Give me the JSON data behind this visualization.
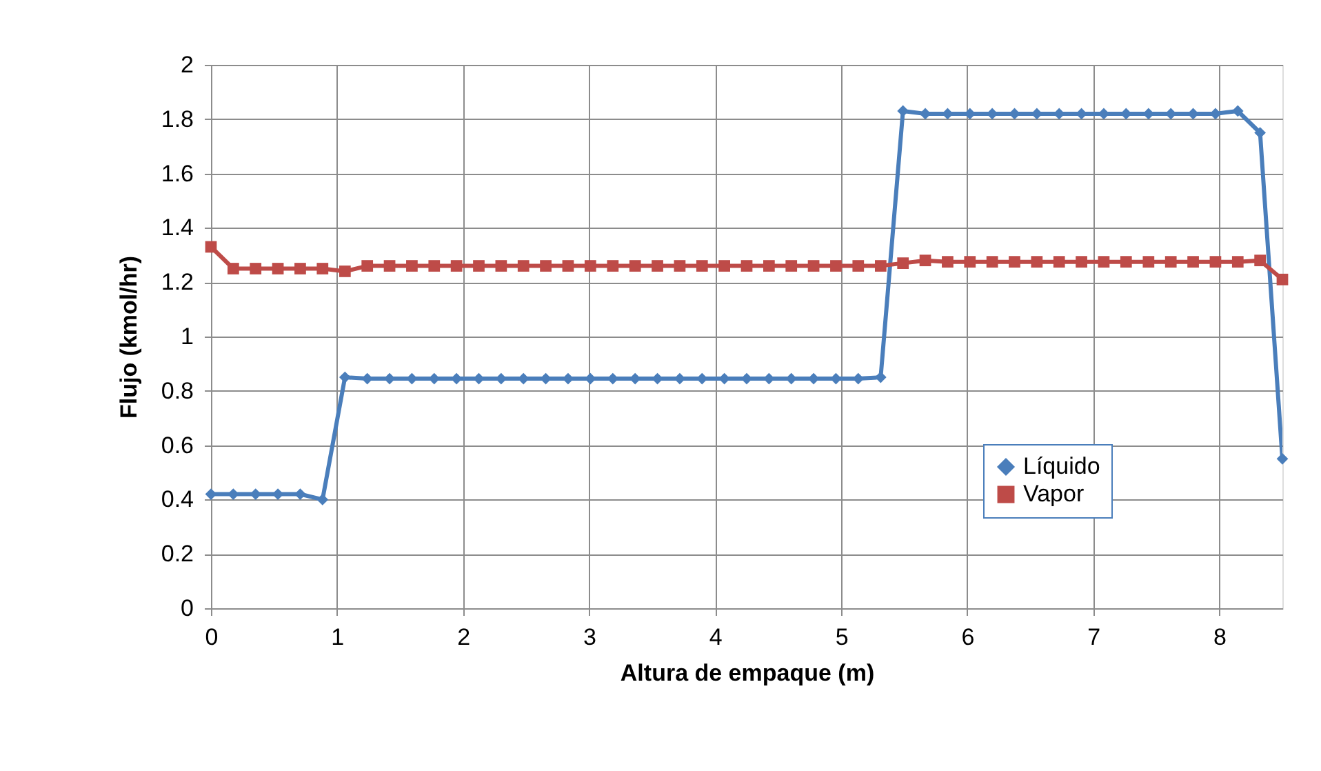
{
  "chart_data": {
    "type": "line",
    "xlabel": "Altura de empaque (m)",
    "ylabel": "Flujo (kmol/hr)",
    "xlim": [
      0,
      8.5
    ],
    "xticks": [
      0,
      1,
      2,
      3,
      4,
      5,
      6,
      7,
      8
    ],
    "ylim": [
      0,
      2
    ],
    "yticks": [
      0,
      0.2,
      0.4,
      0.6,
      0.8,
      1,
      1.2,
      1.4,
      1.6,
      1.8,
      2
    ],
    "grid": true,
    "legend": "bottom right",
    "line_style": "solid",
    "x": [
      0,
      0.177,
      0.354,
      0.531,
      0.708,
      0.885,
      1.063,
      1.24,
      1.417,
      1.594,
      1.771,
      1.948,
      2.125,
      2.302,
      2.479,
      2.656,
      2.833,
      3.01,
      3.188,
      3.365,
      3.542,
      3.719,
      3.896,
      4.073,
      4.25,
      4.427,
      4.604,
      4.781,
      4.958,
      5.135,
      5.313,
      5.49,
      5.667,
      5.844,
      6.021,
      6.198,
      6.375,
      6.552,
      6.729,
      6.906,
      7.083,
      7.26,
      7.438,
      7.615,
      7.792,
      7.969,
      8.146,
      8.323,
      8.5
    ],
    "series": [
      {
        "name": "Líquido",
        "color": "#4a7ebb",
        "marker": "diamond",
        "values": [
          0.42,
          0.42,
          0.42,
          0.42,
          0.42,
          0.4,
          0.85,
          0.845,
          0.845,
          0.845,
          0.845,
          0.845,
          0.845,
          0.845,
          0.845,
          0.845,
          0.845,
          0.845,
          0.845,
          0.845,
          0.845,
          0.845,
          0.845,
          0.845,
          0.845,
          0.845,
          0.845,
          0.845,
          0.845,
          0.845,
          0.85,
          1.83,
          1.82,
          1.82,
          1.82,
          1.82,
          1.82,
          1.82,
          1.82,
          1.82,
          1.82,
          1.82,
          1.82,
          1.82,
          1.82,
          1.82,
          1.83,
          1.75,
          0.55
        ]
      },
      {
        "name": "Vapor",
        "color": "#be4b48",
        "marker": "square",
        "values": [
          1.33,
          1.25,
          1.25,
          1.25,
          1.25,
          1.25,
          1.24,
          1.26,
          1.26,
          1.26,
          1.26,
          1.26,
          1.26,
          1.26,
          1.26,
          1.26,
          1.26,
          1.26,
          1.26,
          1.26,
          1.26,
          1.26,
          1.26,
          1.26,
          1.26,
          1.26,
          1.26,
          1.26,
          1.26,
          1.26,
          1.26,
          1.27,
          1.28,
          1.275,
          1.275,
          1.275,
          1.275,
          1.275,
          1.275,
          1.275,
          1.275,
          1.275,
          1.275,
          1.275,
          1.275,
          1.275,
          1.275,
          1.28,
          1.21
        ]
      }
    ]
  }
}
